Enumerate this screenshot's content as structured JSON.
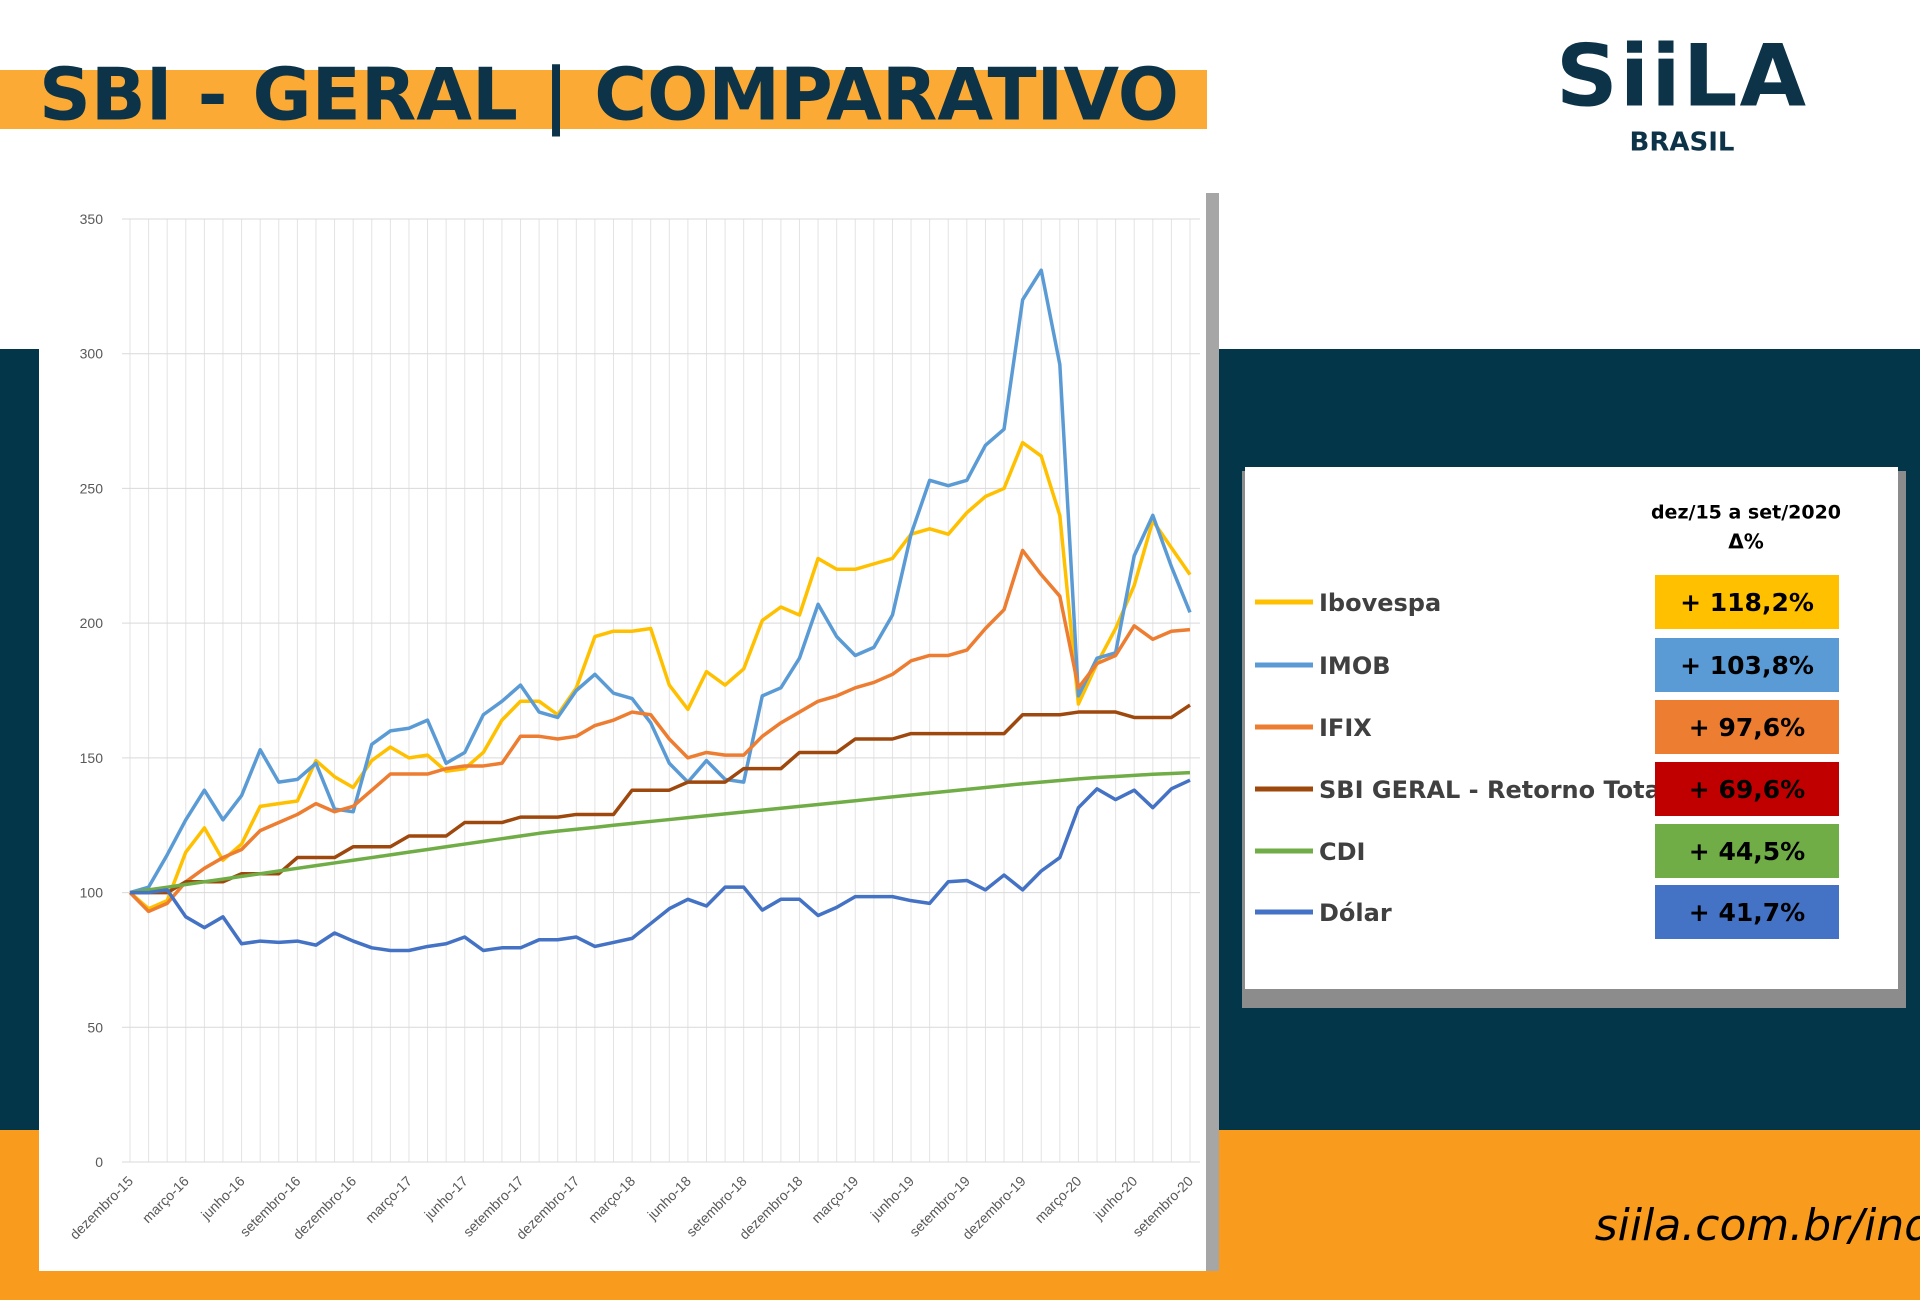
{
  "header": {
    "title": "SBI - GERAL | COMPARATIVO",
    "logo": "SiiLA",
    "logo_sub": "BRASIL"
  },
  "footer": {
    "url": "siila.com.br/index"
  },
  "chart_data": {
    "type": "line",
    "categories": [
      "dezembro-15",
      null,
      null,
      "março-16",
      null,
      null,
      "junho-16",
      null,
      null,
      "setembro-16",
      null,
      null,
      "dezembro-16",
      null,
      null,
      "março-17",
      null,
      null,
      "junho-17",
      null,
      null,
      "setembro-17",
      null,
      null,
      "dezembro-17",
      null,
      null,
      "março-18",
      null,
      null,
      "junho-18",
      null,
      null,
      "setembro-18",
      null,
      null,
      "dezembro-18",
      null,
      null,
      "março-19",
      null,
      null,
      "junho-19",
      null,
      null,
      "setembro-19",
      null,
      null,
      "dezembro-19",
      null,
      null,
      "março-20",
      null,
      null,
      "junho-20",
      null,
      null,
      "setembro-20"
    ],
    "ylim": [
      0,
      350
    ],
    "yticks": [
      0,
      50,
      100,
      150,
      200,
      250,
      300,
      350
    ],
    "grid": true,
    "series": [
      {
        "name": "Ibovespa",
        "color": "#ffc000",
        "values": [
          100,
          94,
          97,
          115,
          124,
          112,
          118,
          132,
          133,
          134,
          149,
          143,
          139,
          149,
          154,
          150,
          151,
          145,
          146,
          152,
          164,
          171,
          171,
          166,
          176,
          195,
          197,
          197,
          198,
          177,
          168,
          182,
          177,
          183,
          201,
          206,
          203,
          224,
          220,
          220,
          222,
          224,
          233,
          235,
          233,
          241,
          247,
          250,
          267,
          262,
          240,
          170,
          185,
          198,
          214,
          238,
          228,
          218
        ]
      },
      {
        "name": "IMOB",
        "color": "#5b9bd5",
        "values": [
          100,
          102,
          114,
          127,
          138,
          127,
          136,
          153,
          141,
          142,
          148,
          131,
          130,
          155,
          160,
          161,
          164,
          148,
          152,
          166,
          171,
          177,
          167,
          165,
          175,
          181,
          174,
          172,
          163,
          148,
          141,
          149,
          142,
          141,
          173,
          176,
          187,
          207,
          195,
          188,
          191,
          203,
          233,
          253,
          251,
          253,
          266,
          272,
          320,
          331,
          296,
          173,
          187,
          189,
          225,
          240,
          221,
          204
        ]
      },
      {
        "name": "IFIX",
        "color": "#ed7d31",
        "values": [
          100,
          93,
          96,
          104,
          109,
          113,
          116,
          123,
          126,
          129,
          133,
          130,
          132,
          138,
          144,
          144,
          144,
          146,
          147,
          147,
          148,
          158,
          158,
          157,
          158,
          162,
          164,
          167,
          166,
          157,
          150,
          152,
          151,
          151,
          158,
          163,
          167,
          171,
          173,
          176,
          178,
          181,
          186,
          188,
          188,
          190,
          198,
          205,
          227,
          218,
          210,
          176,
          185,
          188,
          199,
          194,
          197,
          197.6
        ]
      },
      {
        "name": "SBI GERAL - Retorno Total",
        "color": "#9e480e",
        "values": [
          100,
          100,
          100,
          104,
          104,
          104,
          107,
          107,
          107,
          113,
          113,
          113,
          117,
          117,
          117,
          121,
          121,
          121,
          126,
          126,
          126,
          128,
          128,
          128,
          129,
          129,
          129,
          138,
          138,
          138,
          141,
          141,
          141,
          146,
          146,
          146,
          152,
          152,
          152,
          157,
          157,
          157,
          159,
          159,
          159,
          159,
          159,
          159,
          166,
          166,
          166,
          167,
          167,
          167,
          165,
          165,
          165,
          169.6
        ]
      },
      {
        "name": "CDI",
        "color": "#70ad47",
        "values": [
          100,
          101,
          102,
          103,
          104,
          105,
          106,
          107,
          108,
          109,
          110,
          111,
          112,
          113,
          114,
          115,
          116,
          117,
          118,
          119,
          120,
          121,
          122,
          122.8,
          123.5,
          124.2,
          125,
          125.7,
          126.4,
          127.1,
          127.8,
          128.5,
          129.2,
          129.9,
          130.6,
          131.3,
          132,
          132.7,
          133.4,
          134.1,
          134.8,
          135.5,
          136.2,
          136.9,
          137.6,
          138.3,
          139,
          139.7,
          140.4,
          141,
          141.6,
          142.2,
          142.7,
          143.1,
          143.5,
          143.9,
          144.2,
          144.5
        ]
      },
      {
        "name": "Dólar",
        "color": "#4472c4",
        "values": [
          100,
          100,
          101,
          91,
          87,
          91,
          81,
          82,
          81.5,
          82,
          80.5,
          85,
          82,
          79.5,
          78.5,
          78.5,
          80,
          81,
          83.5,
          78.5,
          79.5,
          79.5,
          82.5,
          82.5,
          83.5,
          80,
          81.5,
          83,
          88.5,
          94,
          97.5,
          95,
          102,
          102,
          93.5,
          97.5,
          97.5,
          91.5,
          94.5,
          98.5,
          98.5,
          98.5,
          97,
          96,
          104,
          104.5,
          101,
          106.5,
          101,
          108,
          113,
          131.5,
          138.5,
          134.5,
          138,
          131.5,
          138.5,
          141.7
        ]
      }
    ]
  },
  "summary": {
    "period": "dez/15 a set/2020",
    "measure": "Δ%",
    "rows": [
      {
        "label": "+ 118,2%",
        "color": "#ffc000"
      },
      {
        "label": "+ 103,8%",
        "color": "#5b9bd5"
      },
      {
        "label": "+ 97,6%",
        "color": "#ed7d31"
      },
      {
        "label": "+ 69,6%",
        "color": "#c00000"
      },
      {
        "label": "+ 44,5%",
        "color": "#70ad47"
      },
      {
        "label": "+ 41,7%",
        "color": "#4472c4"
      }
    ]
  }
}
